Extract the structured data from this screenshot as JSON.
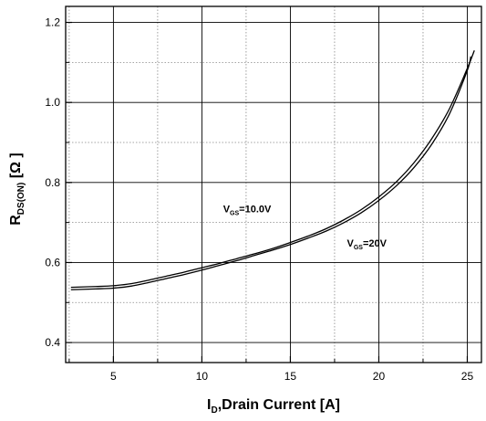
{
  "chart_data": {
    "type": "line",
    "xlabel": {
      "main": "I",
      "sub": "D",
      "rest": ",Drain Current [A]"
    },
    "ylabel": {
      "main": "R",
      "sub": "DS(ON)",
      "rest": " [Ω  ]"
    },
    "xlim": [
      2.3,
      25.8
    ],
    "ylim": [
      0.35,
      1.24
    ],
    "x_ticks": [
      5,
      10,
      15,
      20,
      25
    ],
    "x_tick_labels": [
      "5",
      "10",
      "15",
      "20",
      "25"
    ],
    "x_minor_ticks": [
      2.5,
      7.5,
      12.5,
      17.5,
      22.5
    ],
    "y_ticks": [
      0.4,
      0.6,
      0.8,
      1.0,
      1.2
    ],
    "y_tick_labels": [
      "0.4",
      "0.6",
      "0.8",
      "1.0",
      "1.2"
    ],
    "y_minor_ticks": [
      0.5,
      0.7,
      0.9,
      1.1
    ],
    "grid": true,
    "series": [
      {
        "name": "VGS=10.0V",
        "x": [
          2.6,
          4,
          5,
          6,
          7,
          8,
          9,
          10,
          11,
          12,
          13,
          14,
          15,
          16,
          17,
          18,
          19,
          20,
          21,
          22,
          23,
          24,
          25,
          25.4
        ],
        "y": [
          0.538,
          0.54,
          0.542,
          0.547,
          0.556,
          0.566,
          0.576,
          0.587,
          0.598,
          0.61,
          0.622,
          0.635,
          0.65,
          0.666,
          0.684,
          0.706,
          0.732,
          0.764,
          0.802,
          0.85,
          0.91,
          0.985,
          1.085,
          1.13
        ]
      },
      {
        "name": "VGS=20V",
        "x": [
          2.6,
          4,
          5,
          6,
          7,
          8,
          9,
          10,
          11,
          12,
          13,
          14,
          15,
          16,
          17,
          18,
          19,
          20,
          21,
          22,
          23,
          24,
          25,
          25.2
        ],
        "y": [
          0.532,
          0.534,
          0.536,
          0.541,
          0.55,
          0.56,
          0.57,
          0.581,
          0.593,
          0.605,
          0.618,
          0.631,
          0.645,
          0.661,
          0.678,
          0.699,
          0.724,
          0.755,
          0.792,
          0.838,
          0.896,
          0.972,
          1.08,
          1.115
        ]
      }
    ],
    "annotations": [
      {
        "main": "V",
        "sub": "GS",
        "rest": "=10.0V",
        "x": 11.2,
        "y": 0.725
      },
      {
        "main": "V",
        "sub": "GS",
        "rest": "=20V",
        "x": 18.2,
        "y": 0.64
      }
    ],
    "colors": {
      "line": "#000000",
      "grid_major": "#000000",
      "grid_minor": "#888888"
    }
  }
}
